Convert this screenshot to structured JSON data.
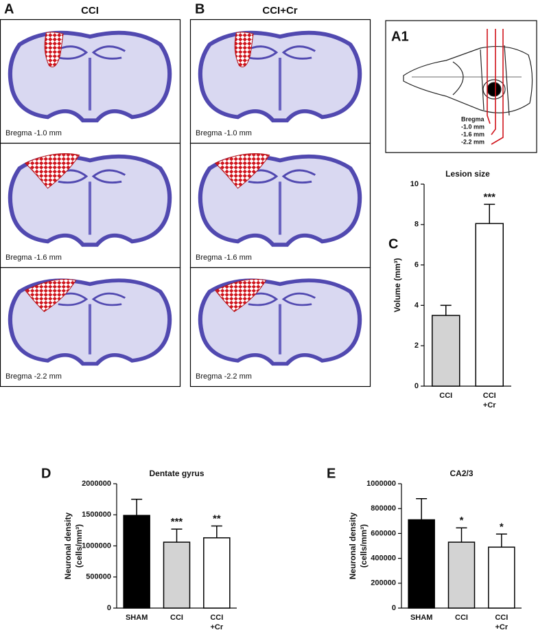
{
  "panels": {
    "A": {
      "letter": "A",
      "heading": "CCI",
      "captions": [
        "Bregma -1.0 mm",
        "Bregma -1.6 mm",
        "Bregma -2.2 mm"
      ]
    },
    "B": {
      "letter": "B",
      "heading": "CCI+Cr",
      "captions": [
        "Bregma -1.0 mm",
        "Bregma -1.6 mm",
        "Bregma -2.2 mm"
      ]
    },
    "A1": {
      "letter": "A1",
      "labels": [
        "Bregma",
        "-1.0 mm",
        "-1.6 mm",
        "-2.2 mm"
      ]
    },
    "C": {
      "letter": "C"
    },
    "D": {
      "letter": "D"
    },
    "E": {
      "letter": "E"
    }
  },
  "chart_data": [
    {
      "type": "bar",
      "title": "Lesion size",
      "ylabel": [
        "Volume (mm³)"
      ],
      "categories": [
        "CCI",
        "CCI +Cr"
      ],
      "values": [
        3.5,
        8.05
      ],
      "errors": [
        0.5,
        0.95
      ],
      "colors": [
        "#d3d3d3",
        "#ffffff"
      ],
      "ylim": [
        0,
        10
      ],
      "yticks": [
        0,
        2,
        4,
        6,
        8,
        10
      ],
      "annotations": [
        {
          "text": "***",
          "category": "CCI +Cr"
        }
      ]
    },
    {
      "type": "bar",
      "title": "Dentate gyrus",
      "ylabel": [
        "Neuronal density",
        "(cells/mm³)"
      ],
      "categories": [
        "SHAM",
        "CCI",
        "CCI +Cr"
      ],
      "values": [
        1490000,
        1060000,
        1130000
      ],
      "errors": [
        260000,
        210000,
        190000
      ],
      "colors": [
        "#000000",
        "#d3d3d3",
        "#ffffff"
      ],
      "ylim": [
        0,
        2000000
      ],
      "yticks": [
        0,
        500000,
        1000000,
        1500000,
        2000000
      ],
      "annotations": [
        {
          "text": "***",
          "category": "CCI"
        },
        {
          "text": "**",
          "category": "CCI +Cr"
        }
      ]
    },
    {
      "type": "bar",
      "title": "CA2/3",
      "ylabel": [
        "Neuronal density",
        "(cells/mm³)"
      ],
      "categories": [
        "SHAM",
        "CCI",
        "CCI +Cr"
      ],
      "values": [
        710000,
        530000,
        490000
      ],
      "errors": [
        170000,
        115000,
        105000
      ],
      "colors": [
        "#000000",
        "#d3d3d3",
        "#ffffff"
      ],
      "ylim": [
        0,
        1000000
      ],
      "yticks": [
        0,
        200000,
        400000,
        600000,
        800000,
        1000000
      ],
      "annotations": [
        {
          "text": "*",
          "category": "CCI"
        },
        {
          "text": "*",
          "category": "CCI +Cr"
        }
      ]
    }
  ]
}
